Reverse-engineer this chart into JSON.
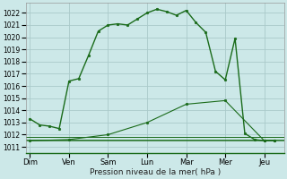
{
  "xlabel": "Pression niveau de la mer( hPa )",
  "bg_color": "#cce8e8",
  "grid_color": "#aacaca",
  "line_color": "#1a6b1a",
  "days": [
    "Dim",
    "Ven",
    "Sam",
    "Lun",
    "Mar",
    "Mer",
    "Jeu"
  ],
  "day_positions": [
    0,
    2,
    4,
    6,
    8,
    10,
    12
  ],
  "xlim": [
    -0.2,
    13.0
  ],
  "ylim": [
    1010.5,
    1022.8
  ],
  "yticks": [
    1011,
    1012,
    1013,
    1014,
    1015,
    1016,
    1017,
    1018,
    1019,
    1020,
    1021,
    1022
  ],
  "curve1_x": [
    0,
    0.5,
    1.0,
    1.5,
    2.0,
    2.5,
    3.0,
    3.5,
    4.0,
    4.5,
    5.0,
    5.5,
    6.0,
    6.5,
    7.0,
    7.5,
    8.0,
    8.5,
    9.0,
    9.5,
    10.0,
    10.5,
    11.0,
    11.5,
    12.0,
    12.5
  ],
  "curve1_y": [
    1013.3,
    1012.8,
    1012.7,
    1012.5,
    1016.4,
    1016.6,
    1018.5,
    1020.5,
    1021.0,
    1021.1,
    1021.0,
    1021.5,
    1022.0,
    1022.3,
    1022.1,
    1021.8,
    1022.2,
    1021.2,
    1020.4,
    1017.2,
    1016.5,
    1019.9,
    1012.1,
    1011.6,
    1011.5,
    1011.5
  ],
  "curve2_x": [
    0,
    2,
    4,
    6,
    8,
    10,
    12,
    12.5
  ],
  "curve2_y": [
    1011.5,
    1011.6,
    1012.0,
    1013.0,
    1014.5,
    1014.8,
    1011.5,
    1011.5
  ],
  "hline1_y": 1011.8,
  "hline2_y": 1011.6,
  "hline3_y": 1011.5
}
